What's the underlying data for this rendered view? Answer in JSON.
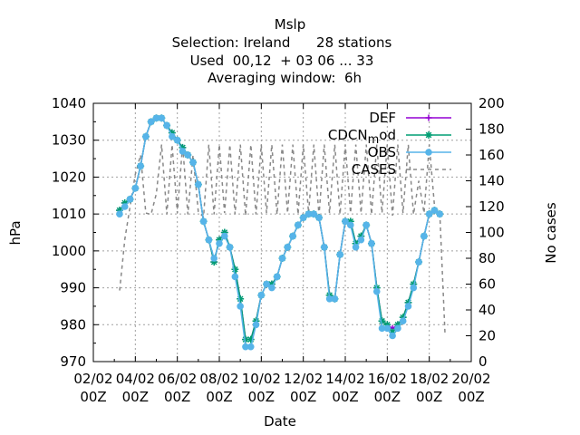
{
  "chart_data": {
    "type": "line",
    "title_lines": [
      "Mslp",
      "Selection: Ireland      28 stations",
      "Used  00,12  + 03 06 ... 33",
      "Averaging window:  6h"
    ],
    "xlabel": "Date",
    "ylabel": "hPa",
    "y2label": "No cases",
    "x_ticks": [
      {
        "l1": "02/02",
        "l2": "00Z",
        "d": 0
      },
      {
        "l1": "04/02",
        "l2": "00Z",
        "d": 2
      },
      {
        "l1": "06/02",
        "l2": "00Z",
        "d": 4
      },
      {
        "l1": "08/02",
        "l2": "00Z",
        "d": 6
      },
      {
        "l1": "10/02",
        "l2": "00Z",
        "d": 8
      },
      {
        "l1": "12/02",
        "l2": "00Z",
        "d": 10
      },
      {
        "l1": "14/02",
        "l2": "00Z",
        "d": 12
      },
      {
        "l1": "16/02",
        "l2": "00Z",
        "d": 14
      },
      {
        "l1": "18/02",
        "l2": "00Z",
        "d": 16
      },
      {
        "l1": "20/02",
        "l2": "00Z",
        "d": 18
      }
    ],
    "xlim": [
      0,
      18
    ],
    "ylim": [
      970,
      1040
    ],
    "y_ticks": [
      970,
      980,
      990,
      1000,
      1010,
      1020,
      1030,
      1040
    ],
    "y2lim": [
      0,
      200
    ],
    "y2_ticks": [
      0,
      20,
      40,
      60,
      80,
      100,
      120,
      140,
      160,
      180,
      200
    ],
    "grid": true,
    "legend_position": "top-right",
    "series": [
      {
        "name": "DEF",
        "color": "#9400d3",
        "marker": "plus",
        "axis": "y1",
        "x": [
          1.25,
          1.5,
          1.75,
          2.0,
          2.25,
          2.5,
          2.75,
          3.0,
          3.25,
          3.5,
          3.75,
          4.0,
          4.25,
          4.5,
          4.75,
          5.0,
          5.25,
          5.5,
          5.75,
          6.0,
          6.25,
          6.5,
          6.75,
          7.0,
          7.25,
          7.5,
          7.75,
          8.0,
          8.25,
          8.5,
          8.75,
          9.0,
          9.25,
          9.5,
          9.75,
          10.0,
          10.25,
          10.5,
          10.75,
          11.0,
          11.25,
          11.5,
          11.75,
          12.0,
          12.25,
          12.5,
          12.75,
          13.0,
          13.25,
          13.5,
          13.75,
          14.0,
          14.25,
          14.5,
          14.75,
          15.0,
          15.25,
          15.5,
          15.75,
          16.0,
          16.25,
          16.5,
          16.75,
          17.0,
          17.25,
          17.5
        ],
        "y": [
          1011,
          1013,
          1014,
          1017,
          1023,
          1031,
          1035,
          1036,
          1036,
          1034,
          1032,
          1030,
          1028,
          1026,
          1024,
          1018,
          1008,
          1003,
          997,
          1003,
          1005,
          1001,
          995,
          987,
          976,
          976,
          981,
          988,
          991,
          991,
          993,
          998,
          1001,
          1004,
          1007,
          1009,
          1010,
          1010,
          1009,
          1001,
          988,
          987,
          999,
          1008,
          1008,
          1002,
          1004,
          1007,
          1002,
          990,
          981,
          980,
          979,
          980,
          982,
          986,
          991,
          997,
          1004,
          1010,
          1011,
          1010,
          null,
          null,
          null,
          null
        ]
      },
      {
        "name": "CDCN_mod",
        "color": "#009e73",
        "marker": "star",
        "axis": "y1",
        "x": [
          1.25,
          1.5,
          1.75,
          2.0,
          2.25,
          2.5,
          2.75,
          3.0,
          3.25,
          3.5,
          3.75,
          4.0,
          4.25,
          4.5,
          4.75,
          5.0,
          5.25,
          5.5,
          5.75,
          6.0,
          6.25,
          6.5,
          6.75,
          7.0,
          7.25,
          7.5,
          7.75,
          8.0,
          8.25,
          8.5,
          8.75,
          9.0,
          9.25,
          9.5,
          9.75,
          10.0,
          10.25,
          10.5,
          10.75,
          11.0,
          11.25,
          11.5,
          11.75,
          12.0,
          12.25,
          12.5,
          12.75,
          13.0,
          13.25,
          13.5,
          13.75,
          14.0,
          14.25,
          14.5,
          14.75,
          15.0,
          15.25,
          15.5,
          15.75,
          16.0,
          16.25,
          16.5
        ],
        "y": [
          1011,
          1013,
          1014,
          1017,
          1023,
          1031,
          1035,
          1036,
          1036,
          1034,
          1032,
          1030,
          1028,
          1026,
          1024,
          1018,
          1008,
          1003,
          997,
          1003,
          1005,
          1001,
          995,
          987,
          976,
          976,
          981,
          988,
          991,
          991,
          993,
          998,
          1001,
          1004,
          1007,
          1009,
          1010,
          1010,
          1009,
          1001,
          988,
          987,
          999,
          1008,
          1008,
          1002,
          1004,
          1007,
          1002,
          990,
          981,
          980,
          978,
          980,
          982,
          986,
          991,
          997,
          1004,
          1010,
          1011,
          1010
        ]
      },
      {
        "name": "OBS",
        "color": "#56b4e9",
        "marker": "circle",
        "axis": "y1",
        "x": [
          1.25,
          1.5,
          1.75,
          2.0,
          2.25,
          2.5,
          2.75,
          3.0,
          3.25,
          3.5,
          3.75,
          4.0,
          4.25,
          4.5,
          4.75,
          5.0,
          5.25,
          5.5,
          5.75,
          6.0,
          6.25,
          6.5,
          6.75,
          7.0,
          7.25,
          7.5,
          7.75,
          8.0,
          8.25,
          8.5,
          8.75,
          9.0,
          9.25,
          9.5,
          9.75,
          10.0,
          10.25,
          10.5,
          10.75,
          11.0,
          11.25,
          11.5,
          11.75,
          12.0,
          12.25,
          12.5,
          12.75,
          13.0,
          13.25,
          13.5,
          13.75,
          14.0,
          14.25,
          14.5,
          14.75,
          15.0,
          15.25,
          15.5,
          15.75,
          16.0,
          16.25,
          16.5
        ],
        "y": [
          1010,
          1012,
          1014,
          1017,
          1023,
          1031,
          1035,
          1036,
          1036,
          1034,
          1031,
          1030,
          1027,
          1026,
          1024,
          1018,
          1008,
          1003,
          998,
          1002,
          1004,
          1001,
          993,
          985,
          974,
          974,
          980,
          988,
          991,
          990,
          993,
          998,
          1001,
          1004,
          1007,
          1009,
          1010,
          1010,
          1009,
          1001,
          987,
          987,
          999,
          1008,
          1007,
          1001,
          1003,
          1007,
          1002,
          989,
          979,
          979,
          977,
          979,
          981,
          985,
          990,
          997,
          1004,
          1010,
          1011,
          1010
        ]
      },
      {
        "name": "CASES",
        "color": "#888888",
        "marker": "none",
        "dash": true,
        "axis": "y2",
        "x": [
          1.25,
          1.5,
          1.75,
          2.0,
          2.25,
          2.5,
          2.75,
          3.0,
          3.25,
          3.5,
          3.75,
          4.0,
          4.25,
          4.5,
          4.75,
          5.0,
          5.25,
          5.5,
          5.75,
          6.0,
          6.25,
          6.5,
          6.75,
          7.0,
          7.25,
          7.5,
          7.75,
          8.0,
          8.25,
          8.5,
          8.75,
          9.0,
          9.25,
          9.5,
          9.75,
          10.0,
          10.25,
          10.5,
          10.75,
          11.0,
          11.25,
          11.5,
          11.75,
          12.0,
          12.25,
          12.5,
          12.75,
          13.0,
          13.25,
          13.5,
          13.75,
          14.0,
          14.25,
          14.5,
          14.75,
          15.0,
          15.25,
          15.5,
          15.75,
          16.0,
          16.25,
          16.5,
          16.75
        ],
        "y": [
          55,
          95,
          120,
          145,
          160,
          115,
          114,
          130,
          168,
          114,
          168,
          115,
          168,
          114,
          160,
          116,
          112,
          168,
          114,
          168,
          115,
          168,
          114,
          168,
          113,
          168,
          114,
          168,
          115,
          168,
          114,
          168,
          115,
          168,
          114,
          168,
          115,
          168,
          113,
          168,
          115,
          168,
          114,
          168,
          115,
          168,
          115,
          168,
          114,
          168,
          115,
          168,
          113,
          168,
          115,
          168,
          114,
          140,
          115,
          168,
          120,
          115,
          22
        ]
      }
    ]
  }
}
